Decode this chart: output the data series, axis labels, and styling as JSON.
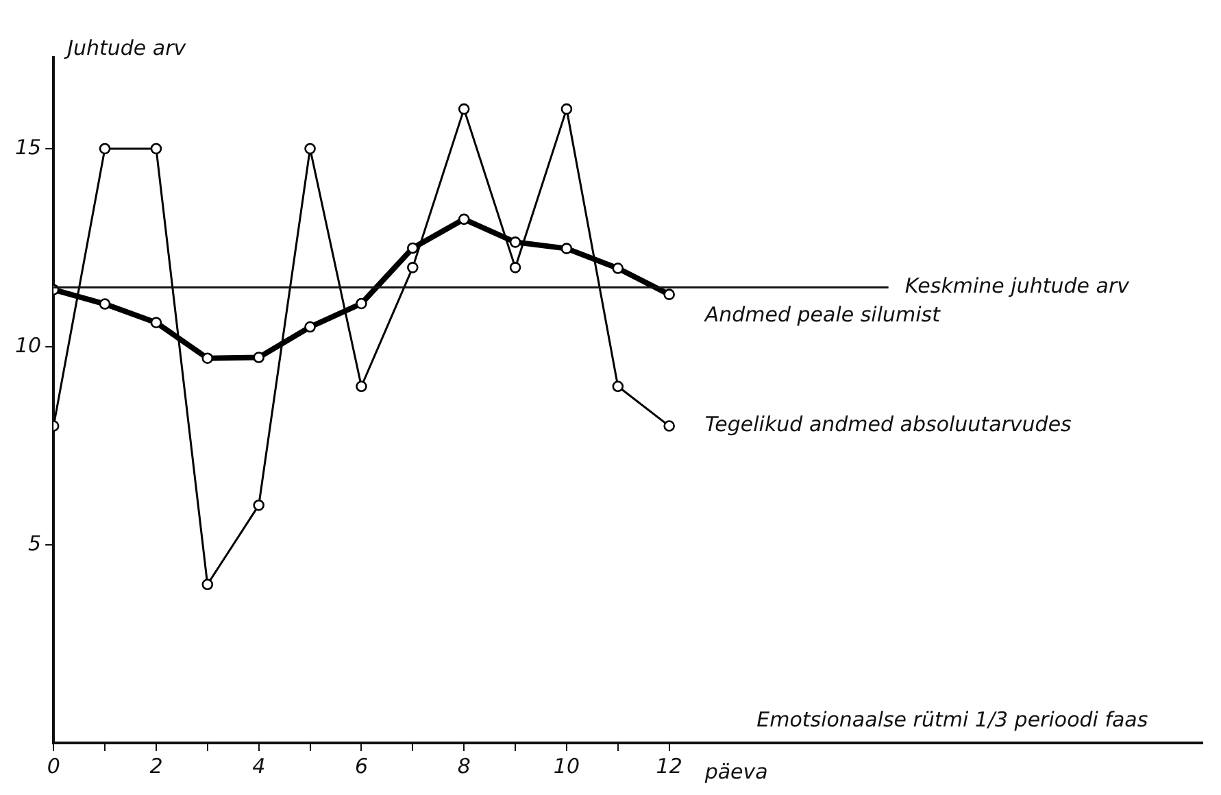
{
  "chart_data": {
    "type": "line",
    "ylabel": "Juhtude arv",
    "xlabel": "Emotsionaalse rütmi 1/3 perioodi faas",
    "annotations": [
      "päeva"
    ],
    "x": [
      0,
      1,
      2,
      3,
      4,
      5,
      6,
      7,
      8,
      9,
      10,
      11,
      12
    ],
    "series": [
      {
        "name": "Andmed peale silumist",
        "color": "#000000",
        "values": [
          11.44,
          11.08,
          10.61,
          9.71,
          9.73,
          10.5,
          11.09,
          12.49,
          13.22,
          12.64,
          12.48,
          11.98,
          11.32
        ]
      },
      {
        "name": "Tegelikud andmed absoluutarvudes",
        "color": "#000000",
        "values": [
          8,
          15,
          15,
          4,
          6,
          15,
          9,
          12,
          16,
          12,
          16,
          9,
          8
        ]
      }
    ],
    "ref_lines": [
      {
        "axis": "y",
        "value": 11.5,
        "label": "Keskmine juhtude arv"
      }
    ],
    "xlim": [
      0,
      22.4
    ],
    "xticks": [
      0,
      {
        "value": 1,
        "label": null
      },
      2,
      {
        "value": 3,
        "label": null
      },
      4,
      {
        "value": 5,
        "label": null
      },
      6,
      {
        "value": 7,
        "label": null
      },
      8,
      {
        "value": 9,
        "label": null
      },
      10,
      {
        "value": 11,
        "label": null
      },
      12
    ],
    "ylim": [
      0,
      17.3
    ],
    "yticks": [
      5,
      10,
      15
    ],
    "grid": false,
    "legend": false,
    "marker": "circle",
    "line_style": "solid"
  }
}
